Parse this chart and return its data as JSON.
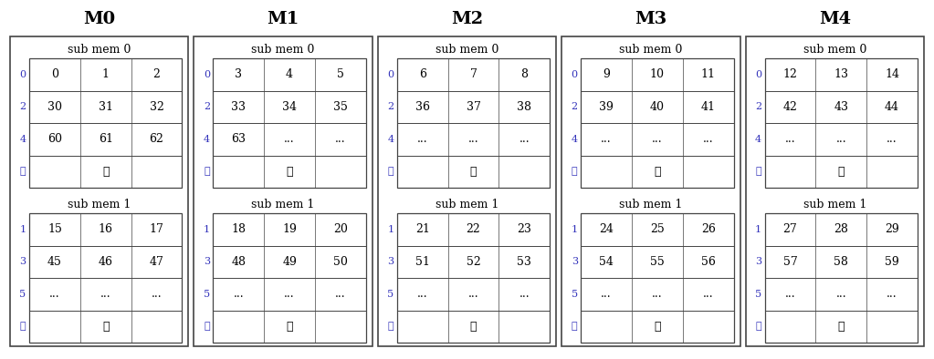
{
  "module_data": [
    {
      "name": "M0",
      "sub_mems": [
        {
          "label": "sub mem 0",
          "row_labels": [
            "0",
            "2",
            "4",
            "⋮"
          ],
          "rows": [
            [
              "0",
              "1",
              "2"
            ],
            [
              "30",
              "31",
              "32"
            ],
            [
              "60",
              "61",
              "62"
            ],
            [
              "",
              "⋮",
              ""
            ]
          ]
        },
        {
          "label": "sub mem 1",
          "row_labels": [
            "1",
            "3",
            "5",
            "⋮"
          ],
          "rows": [
            [
              "15",
              "16",
              "17"
            ],
            [
              "45",
              "46",
              "47"
            ],
            [
              "...",
              "...",
              "..."
            ],
            [
              "",
              "⋮",
              ""
            ]
          ]
        }
      ]
    },
    {
      "name": "M1",
      "sub_mems": [
        {
          "label": "sub mem 0",
          "row_labels": [
            "0",
            "2",
            "4",
            "⋮"
          ],
          "rows": [
            [
              "3",
              "4",
              "5"
            ],
            [
              "33",
              "34",
              "35"
            ],
            [
              "63",
              "...",
              "..."
            ],
            [
              "",
              "⋮",
              ""
            ]
          ]
        },
        {
          "label": "sub mem 1",
          "row_labels": [
            "1",
            "3",
            "5",
            "⋮"
          ],
          "rows": [
            [
              "18",
              "19",
              "20"
            ],
            [
              "48",
              "49",
              "50"
            ],
            [
              "...",
              "...",
              "..."
            ],
            [
              "",
              "⋮",
              ""
            ]
          ]
        }
      ]
    },
    {
      "name": "M2",
      "sub_mems": [
        {
          "label": "sub mem 0",
          "row_labels": [
            "0",
            "2",
            "4",
            "⋮"
          ],
          "rows": [
            [
              "6",
              "7",
              "8"
            ],
            [
              "36",
              "37",
              "38"
            ],
            [
              "...",
              "...",
              "..."
            ],
            [
              "",
              "⋮",
              ""
            ]
          ]
        },
        {
          "label": "sub mem 1",
          "row_labels": [
            "1",
            "3",
            "5",
            "⋮"
          ],
          "rows": [
            [
              "21",
              "22",
              "23"
            ],
            [
              "51",
              "52",
              "53"
            ],
            [
              "...",
              "...",
              "..."
            ],
            [
              "",
              "⋮",
              ""
            ]
          ]
        }
      ]
    },
    {
      "name": "M3",
      "sub_mems": [
        {
          "label": "sub mem 0",
          "row_labels": [
            "0",
            "2",
            "4",
            "⋮"
          ],
          "rows": [
            [
              "9",
              "10",
              "11"
            ],
            [
              "39",
              "40",
              "41"
            ],
            [
              "...",
              "...",
              "..."
            ],
            [
              "",
              "⋮",
              ""
            ]
          ]
        },
        {
          "label": "sub mem 1",
          "row_labels": [
            "1",
            "3",
            "5",
            "⋮"
          ],
          "rows": [
            [
              "24",
              "25",
              "26"
            ],
            [
              "54",
              "55",
              "56"
            ],
            [
              "...",
              "...",
              "..."
            ],
            [
              "",
              "⋮",
              ""
            ]
          ]
        }
      ]
    },
    {
      "name": "M4",
      "sub_mems": [
        {
          "label": "sub mem 0",
          "row_labels": [
            "0",
            "2",
            "4",
            "⋮"
          ],
          "rows": [
            [
              "12",
              "13",
              "14"
            ],
            [
              "42",
              "43",
              "44"
            ],
            [
              "...",
              "...",
              "..."
            ],
            [
              "",
              "⋮",
              ""
            ]
          ]
        },
        {
          "label": "sub mem 1",
          "row_labels": [
            "1",
            "3",
            "5",
            "⋮"
          ],
          "rows": [
            [
              "27",
              "28",
              "29"
            ],
            [
              "57",
              "58",
              "59"
            ],
            [
              "...",
              "...",
              "..."
            ],
            [
              "",
              "⋮",
              ""
            ]
          ]
        }
      ]
    }
  ],
  "row_label_color": "#3333bb",
  "text_color": "#000000",
  "bg_color": "#ffffff",
  "border_color": "#444444",
  "module_title_fontsize": 14,
  "cell_fontsize": 9,
  "row_label_fontsize": 8,
  "sub_label_fontsize": 9
}
